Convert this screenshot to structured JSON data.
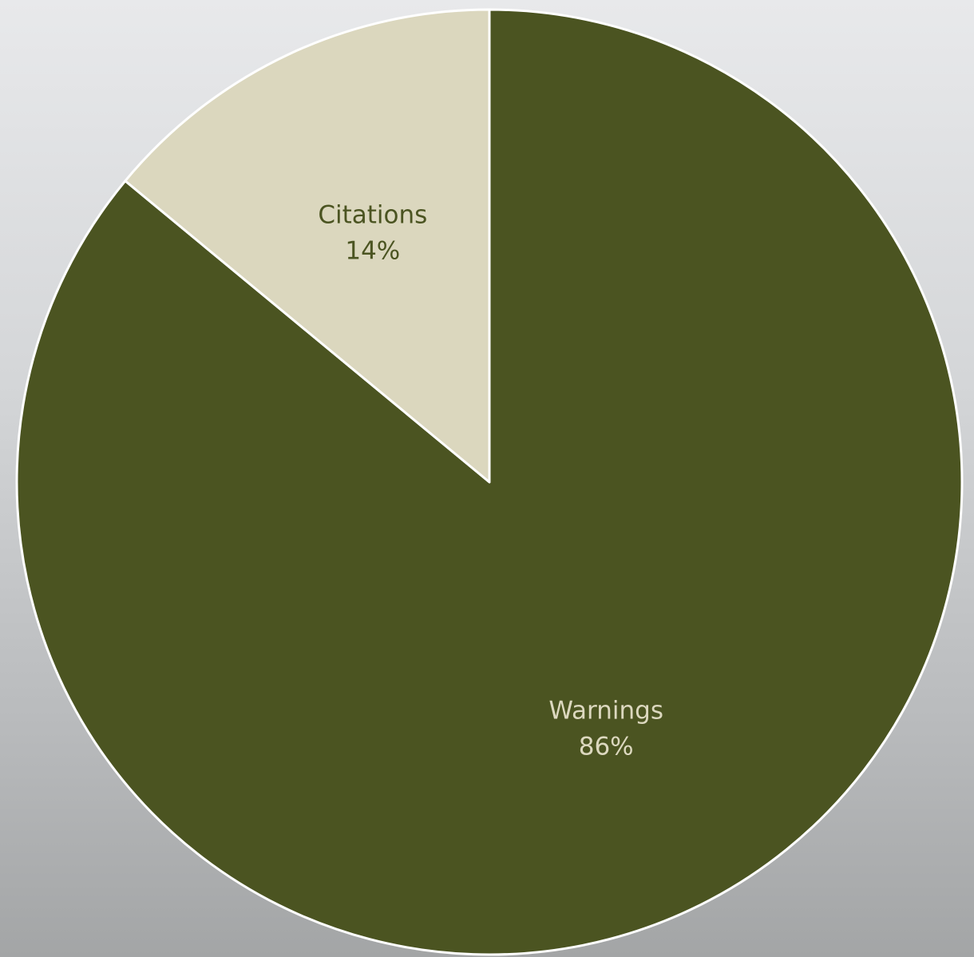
{
  "chart_data": {
    "type": "pie",
    "start_angle_deg": 0,
    "direction": "clockwise",
    "slices": [
      {
        "label": "Warnings",
        "value": 86,
        "value_label": "86%",
        "color": "#4b5421",
        "label_color": "#dcd8bf"
      },
      {
        "label": "Citations",
        "value": 14,
        "value_label": "14%",
        "color": "#dbd7be",
        "label_color": "#4b5421"
      }
    ],
    "legend": "none",
    "slice_border_color": "#ffffff"
  }
}
